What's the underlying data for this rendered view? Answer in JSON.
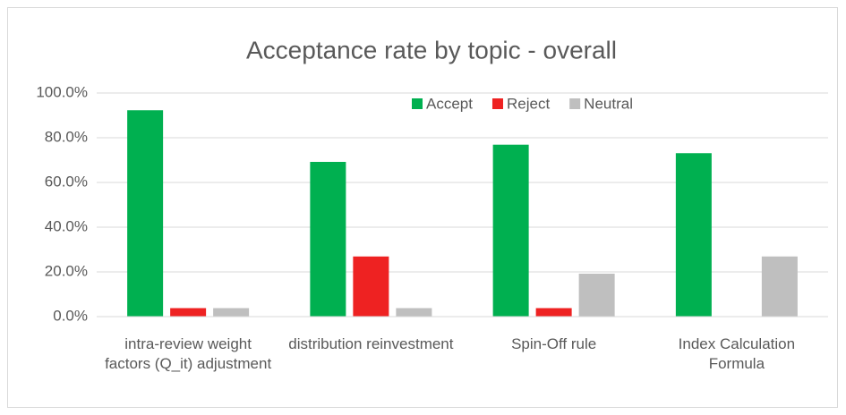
{
  "chart_data": {
    "type": "bar",
    "title": "Acceptance rate by topic - overall",
    "categories": [
      "intra-review weight factors (Q_it) adjustment",
      "distribution reinvestment",
      "Spin-Off rule",
      "Index Calculation Formula"
    ],
    "series": [
      {
        "name": "Accept",
        "color": "#00b050",
        "values": [
          92.3,
          69.2,
          76.9,
          73.1
        ]
      },
      {
        "name": "Reject",
        "color": "#ee2222",
        "values": [
          3.8,
          26.9,
          3.8,
          0
        ]
      },
      {
        "name": "Neutral",
        "color": "#bfbfbf",
        "values": [
          3.8,
          3.8,
          19.2,
          26.9
        ]
      }
    ],
    "ylim": [
      0,
      100
    ],
    "yticks": [
      {
        "value": 0,
        "label": "0.0%"
      },
      {
        "value": 20,
        "label": "20.0%"
      },
      {
        "value": 40,
        "label": "40.0%"
      },
      {
        "value": 60,
        "label": "60.0%"
      },
      {
        "value": 80,
        "label": "80.0%"
      },
      {
        "value": 100,
        "label": "100.0%"
      }
    ],
    "grid": true,
    "legend": "top"
  }
}
